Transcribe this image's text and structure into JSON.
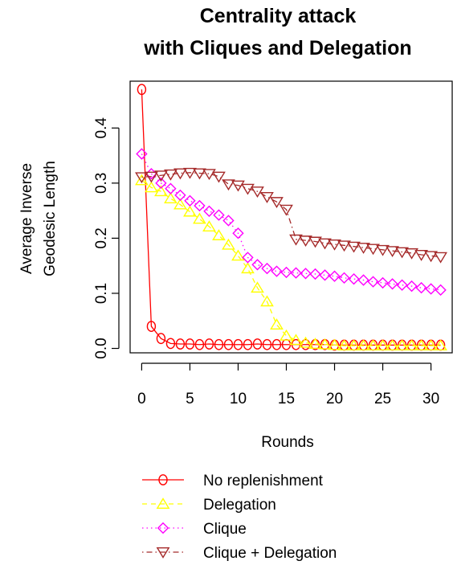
{
  "chart_data": {
    "type": "line",
    "title_lines": [
      "Centrality attack",
      "with Cliques and Delegation"
    ],
    "xlabel": "Rounds",
    "ylabel_lines": [
      "Average Inverse",
      "Geodesic Length"
    ],
    "xlim": [
      -1.2,
      32.2
    ],
    "ylim": [
      -0.008,
      0.485
    ],
    "xticks": [
      0,
      5,
      10,
      15,
      20,
      25,
      30
    ],
    "xtick_labels": [
      "0",
      "5",
      "10",
      "15",
      "20",
      "25",
      "30"
    ],
    "yticks": [
      0.0,
      0.1,
      0.2,
      0.3,
      0.4
    ],
    "ytick_labels": [
      "0.0",
      "0.1",
      "0.2",
      "0.3",
      "0.4"
    ],
    "grid": false,
    "legend_position": "bottom",
    "x": [
      0,
      1,
      2,
      3,
      4,
      5,
      6,
      7,
      8,
      9,
      10,
      11,
      12,
      13,
      14,
      15,
      16,
      17,
      18,
      19,
      20,
      21,
      22,
      23,
      24,
      25,
      26,
      27,
      28,
      29,
      30,
      31
    ],
    "series": [
      {
        "name": "No replenishment",
        "color": "#ff0000",
        "line": "solid",
        "marker": "circle",
        "values": [
          0.47,
          0.04,
          0.018,
          0.009,
          0.008,
          0.008,
          0.007,
          0.008,
          0.007,
          0.007,
          0.007,
          0.007,
          0.008,
          0.007,
          0.007,
          0.007,
          0.007,
          0.007,
          0.007,
          0.007,
          0.006,
          0.006,
          0.006,
          0.006,
          0.006,
          0.006,
          0.006,
          0.006,
          0.006,
          0.006,
          0.006,
          0.006
        ]
      },
      {
        "name": "Delegation",
        "color": "#ffff00",
        "line": "dashed",
        "marker": "triangle-up",
        "values": [
          0.305,
          0.292,
          0.285,
          0.272,
          0.261,
          0.248,
          0.235,
          0.221,
          0.205,
          0.188,
          0.168,
          0.145,
          0.11,
          0.085,
          0.043,
          0.023,
          0.015,
          0.01,
          0.008,
          0.007,
          0.006,
          0.005,
          0.005,
          0.005,
          0.005,
          0.005,
          0.005,
          0.005,
          0.005,
          0.005,
          0.005,
          0.005
        ]
      },
      {
        "name": "Clique",
        "color": "#ff00ff",
        "line": "dotted",
        "marker": "diamond",
        "values": [
          0.353,
          0.317,
          0.3,
          0.29,
          0.278,
          0.268,
          0.259,
          0.249,
          0.242,
          0.232,
          0.209,
          0.165,
          0.152,
          0.145,
          0.14,
          0.138,
          0.137,
          0.136,
          0.135,
          0.133,
          0.131,
          0.128,
          0.126,
          0.124,
          0.121,
          0.119,
          0.117,
          0.115,
          0.113,
          0.11,
          0.108,
          0.106
        ]
      },
      {
        "name": "Clique + Delegation",
        "color": "#a52a2a",
        "line": "dotdash",
        "marker": "triangle-down",
        "values": [
          0.311,
          0.312,
          0.314,
          0.316,
          0.318,
          0.319,
          0.318,
          0.317,
          0.312,
          0.298,
          0.296,
          0.29,
          0.285,
          0.275,
          0.266,
          0.252,
          0.198,
          0.196,
          0.194,
          0.191,
          0.189,
          0.187,
          0.185,
          0.183,
          0.181,
          0.179,
          0.177,
          0.175,
          0.173,
          0.17,
          0.168,
          0.166
        ]
      }
    ]
  }
}
